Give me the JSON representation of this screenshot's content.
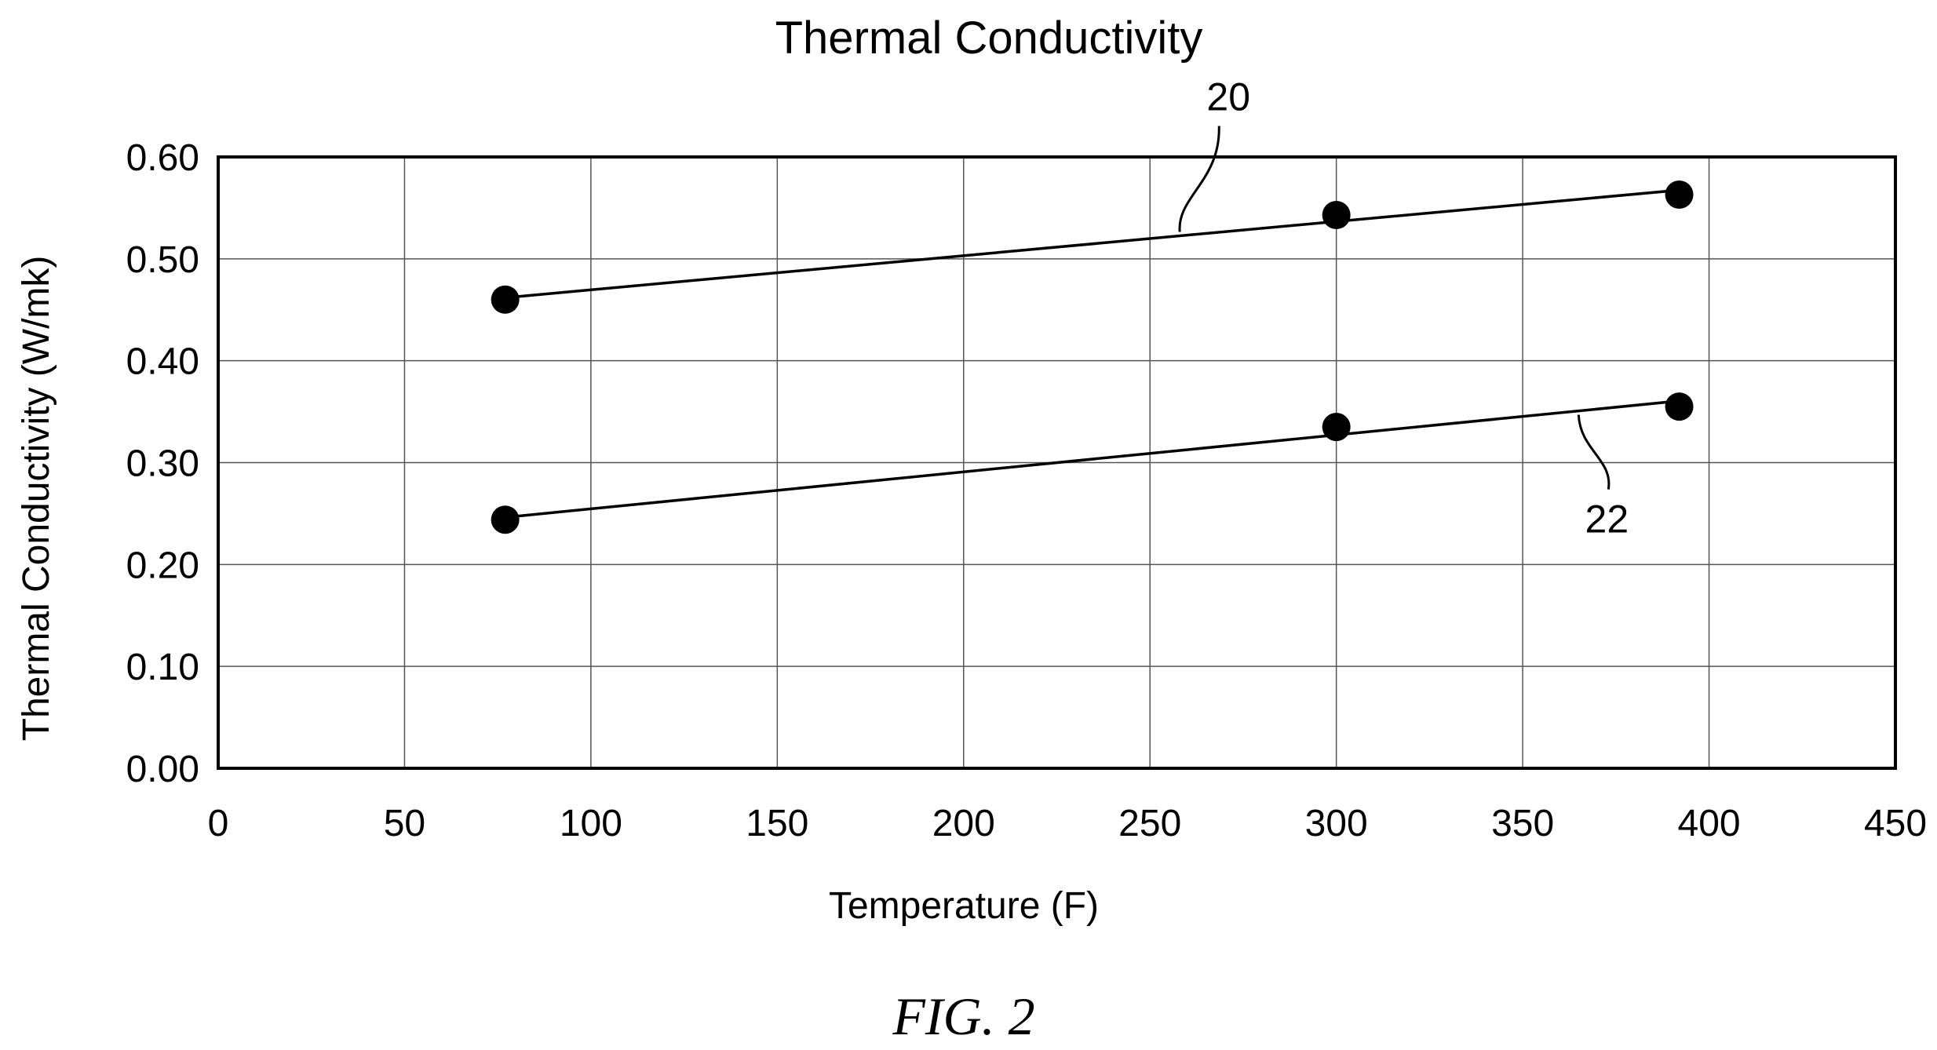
{
  "chart_data": {
    "type": "scatter",
    "title": "Thermal Conductivity",
    "xlabel": "Temperature (F)",
    "ylabel": "Thermal Conductivity (W/mk)",
    "xlim": [
      0,
      450
    ],
    "ylim": [
      0,
      0.6
    ],
    "x_ticks": [
      "0",
      "50",
      "100",
      "150",
      "200",
      "250",
      "300",
      "350",
      "400",
      "450"
    ],
    "y_ticks": [
      "0.00",
      "0.10",
      "0.20",
      "0.30",
      "0.40",
      "0.50",
      "0.60"
    ],
    "grid": true,
    "legend": "none",
    "trendline": "linear",
    "series": [
      {
        "name": "20",
        "x": [
          77,
          300,
          392
        ],
        "y": [
          0.46,
          0.543,
          0.563
        ]
      },
      {
        "name": "22",
        "x": [
          77,
          300,
          392
        ],
        "y": [
          0.244,
          0.335,
          0.355
        ]
      }
    ]
  },
  "figure": {
    "caption": "FIG. 2"
  }
}
